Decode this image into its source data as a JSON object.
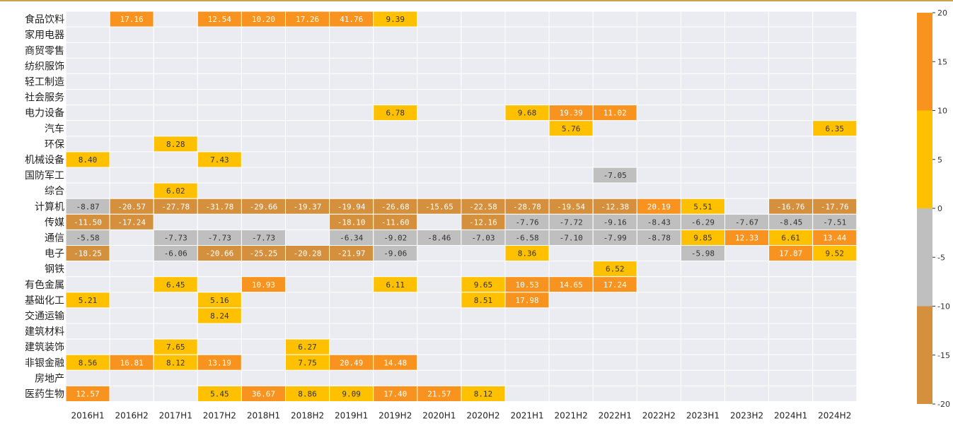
{
  "chart_data": {
    "type": "heatmap",
    "rows": [
      "食品饮料",
      "家用电器",
      "商贸零售",
      "纺织服饰",
      "轻工制造",
      "社会服务",
      "电力设备",
      "汽车",
      "环保",
      "机械设备",
      "国防军工",
      "综合",
      "计算机",
      "传媒",
      "通信",
      "电子",
      "钢铁",
      "有色金属",
      "基础化工",
      "交通运输",
      "建筑材料",
      "建筑装饰",
      "非银金融",
      "房地产",
      "医药生物"
    ],
    "columns": [
      "2016H1",
      "2016H2",
      "2017H1",
      "2017H2",
      "2018H1",
      "2018H2",
      "2019H1",
      "2019H2",
      "2020H1",
      "2020H2",
      "2021H1",
      "2021H2",
      "2022H1",
      "2022H2",
      "2023H1",
      "2023H2",
      "2024H1",
      "2024H2"
    ],
    "values": [
      [
        null,
        "17.16",
        null,
        "12.54",
        "10.20",
        "17.26",
        "41.76",
        "9.39",
        null,
        null,
        null,
        null,
        null,
        null,
        null,
        null,
        null,
        null
      ],
      [
        null,
        null,
        null,
        null,
        null,
        null,
        null,
        null,
        null,
        null,
        null,
        null,
        null,
        null,
        null,
        null,
        null,
        null
      ],
      [
        null,
        null,
        null,
        null,
        null,
        null,
        null,
        null,
        null,
        null,
        null,
        null,
        null,
        null,
        null,
        null,
        null,
        null
      ],
      [
        null,
        null,
        null,
        null,
        null,
        null,
        null,
        null,
        null,
        null,
        null,
        null,
        null,
        null,
        null,
        null,
        null,
        null
      ],
      [
        null,
        null,
        null,
        null,
        null,
        null,
        null,
        null,
        null,
        null,
        null,
        null,
        null,
        null,
        null,
        null,
        null,
        null
      ],
      [
        null,
        null,
        null,
        null,
        null,
        null,
        null,
        null,
        null,
        null,
        null,
        null,
        null,
        null,
        null,
        null,
        null,
        null
      ],
      [
        null,
        null,
        null,
        null,
        null,
        null,
        null,
        "6.78",
        null,
        null,
        "9.68",
        "19.39",
        "11.02",
        null,
        null,
        null,
        null,
        null
      ],
      [
        null,
        null,
        null,
        null,
        null,
        null,
        null,
        null,
        null,
        null,
        null,
        "5.76",
        null,
        null,
        null,
        null,
        null,
        "6.35"
      ],
      [
        null,
        null,
        "8.28",
        null,
        null,
        null,
        null,
        null,
        null,
        null,
        null,
        null,
        null,
        null,
        null,
        null,
        null,
        null
      ],
      [
        "8.40",
        null,
        null,
        "7.43",
        null,
        null,
        null,
        null,
        null,
        null,
        null,
        null,
        null,
        null,
        null,
        null,
        null,
        null
      ],
      [
        null,
        null,
        null,
        null,
        null,
        null,
        null,
        null,
        null,
        null,
        null,
        null,
        "-7.05",
        null,
        null,
        null,
        null,
        null
      ],
      [
        null,
        null,
        "6.02",
        null,
        null,
        null,
        null,
        null,
        null,
        null,
        null,
        null,
        null,
        null,
        null,
        null,
        null,
        null
      ],
      [
        "-8.87",
        "-20.57",
        "-27.78",
        "-31.78",
        "-29.66",
        "-19.37",
        "-19.94",
        "-26.68",
        "-15.65",
        "-22.58",
        "-28.78",
        "-19.54",
        "-12.38",
        "20.19",
        "5.51",
        null,
        "-16.76",
        "-17.76"
      ],
      [
        "-11.50",
        "-17.24",
        null,
        null,
        null,
        null,
        "-18.10",
        "-11.60",
        null,
        "-12.16",
        "-7.76",
        "-7.72",
        "-9.16",
        "-8.43",
        "-6.29",
        "-7.67",
        "-8.45",
        "-7.51"
      ],
      [
        "-5.58",
        null,
        "-7.73",
        "-7.73",
        "-7.73",
        null,
        "-6.34",
        "-9.02",
        "-8.46",
        "-7.03",
        "-6.58",
        "-7.10",
        "-7.99",
        "-8.78",
        "9.85",
        "12.33",
        "6.61",
        "13.44"
      ],
      [
        "-18.25",
        null,
        "-6.06",
        "-20.66",
        "-25.25",
        "-20.28",
        "-21.97",
        "-9.06",
        null,
        null,
        "8.36",
        null,
        null,
        null,
        "-5.98",
        null,
        "17.87",
        "9.52"
      ],
      [
        null,
        null,
        null,
        null,
        null,
        null,
        null,
        null,
        null,
        null,
        null,
        null,
        "6.52",
        null,
        null,
        null,
        null,
        null
      ],
      [
        null,
        null,
        "6.45",
        null,
        "10.93",
        null,
        null,
        "6.11",
        null,
        "9.65",
        "10.53",
        "14.65",
        "17.24",
        null,
        null,
        null,
        null,
        null
      ],
      [
        "5.21",
        null,
        null,
        "5.16",
        null,
        null,
        null,
        null,
        null,
        "8.51",
        "17.98",
        null,
        null,
        null,
        null,
        null,
        null,
        null
      ],
      [
        null,
        null,
        null,
        "8.24",
        null,
        null,
        null,
        null,
        null,
        null,
        null,
        null,
        null,
        null,
        null,
        null,
        null,
        null
      ],
      [
        null,
        null,
        null,
        null,
        null,
        null,
        null,
        null,
        null,
        null,
        null,
        null,
        null,
        null,
        null,
        null,
        null,
        null
      ],
      [
        null,
        null,
        "7.65",
        null,
        null,
        "6.27",
        null,
        null,
        null,
        null,
        null,
        null,
        null,
        null,
        null,
        null,
        null,
        null
      ],
      [
        "8.56",
        "16.81",
        "8.12",
        "13.19",
        null,
        "7.75",
        "20.49",
        "14.48",
        null,
        null,
        null,
        null,
        null,
        null,
        null,
        null,
        null,
        null
      ],
      [
        null,
        null,
        null,
        null,
        null,
        null,
        null,
        null,
        null,
        null,
        null,
        null,
        null,
        null,
        null,
        null,
        null,
        null
      ],
      [
        "12.57",
        null,
        null,
        "5.45",
        "36.67",
        "8.86",
        "9.09",
        "17.40",
        "21.57",
        "8.12",
        null,
        null,
        null,
        null,
        null,
        null,
        null,
        null
      ]
    ],
    "color_scale": {
      "vmin": -20,
      "vmax": 20,
      "bins": [
        {
          "from": -20,
          "to": -10,
          "color": "#D4903D"
        },
        {
          "from": -10,
          "to": 0,
          "color": "#BFBFBF"
        },
        {
          "from": 0,
          "to": 10,
          "color": "#FFC000"
        },
        {
          "from": 10,
          "to": 20,
          "color": "#F7931E"
        }
      ],
      "ticks": [
        "20",
        "15",
        "10",
        "5",
        "0",
        "-5",
        "-10",
        "-15",
        "-20"
      ]
    },
    "empty_cell_color": "#EBEBF2",
    "grid": true,
    "legend_placement": "right",
    "top_rule_color": "#C9A24A"
  }
}
